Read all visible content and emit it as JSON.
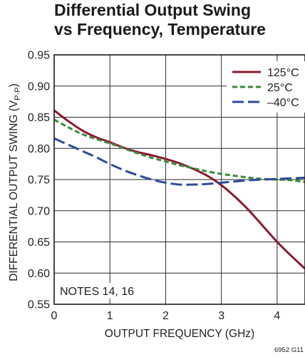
{
  "chart_data": {
    "type": "line",
    "title": [
      "Differential Output Swing",
      "vs Frequency, Temperature"
    ],
    "xlabel": "OUTPUT FREQUENCY (GHz)",
    "ylabel": "DIFFERENTIAL OUTPUT SWING (V",
    "ylabel_sub": "P-P",
    "ylabel_close": ")",
    "xlim": [
      0,
      4.5
    ],
    "ylim": [
      0.55,
      0.95
    ],
    "x_ticks": [
      "0",
      "1",
      "2",
      "3",
      "4"
    ],
    "y_ticks": [
      "0.55",
      "0.60",
      "0.65",
      "0.70",
      "0.75",
      "0.80",
      "0.85",
      "0.90",
      "0.95"
    ],
    "grid": true,
    "legend_position": "top-right",
    "note": "NOTES 14, 16",
    "figure_code": "6952 G11",
    "series": [
      {
        "name": "125°C",
        "color": "#8b1a2e",
        "dash": "solid",
        "x": [
          0,
          0.25,
          0.5,
          0.75,
          1.0,
          1.25,
          1.5,
          1.75,
          2.0,
          2.25,
          2.5,
          2.75,
          3.0,
          3.25,
          3.5,
          3.75,
          4.0,
          4.25,
          4.5
        ],
        "y": [
          0.861,
          0.844,
          0.829,
          0.818,
          0.81,
          0.801,
          0.794,
          0.789,
          0.783,
          0.776,
          0.767,
          0.756,
          0.741,
          0.722,
          0.7,
          0.675,
          0.65,
          0.628,
          0.607
        ]
      },
      {
        "name": "25°C",
        "color": "#3a8a3a",
        "dash": "short",
        "x": [
          0,
          0.25,
          0.5,
          0.75,
          1.0,
          1.25,
          1.5,
          1.75,
          2.0,
          2.25,
          2.5,
          2.75,
          3.0,
          3.25,
          3.5,
          3.75,
          4.0,
          4.25,
          4.5
        ],
        "y": [
          0.846,
          0.834,
          0.823,
          0.815,
          0.808,
          0.8,
          0.792,
          0.785,
          0.779,
          0.773,
          0.768,
          0.763,
          0.759,
          0.756,
          0.753,
          0.751,
          0.75,
          0.749,
          0.746
        ]
      },
      {
        "name": "–40°C",
        "color": "#2e4a9e",
        "dash": "long",
        "x": [
          0,
          0.25,
          0.5,
          0.75,
          1.0,
          1.25,
          1.5,
          1.75,
          2.0,
          2.25,
          2.5,
          2.75,
          3.0,
          3.25,
          3.5,
          3.75,
          4.0,
          4.25,
          4.5
        ],
        "y": [
          0.816,
          0.806,
          0.796,
          0.786,
          0.775,
          0.765,
          0.757,
          0.75,
          0.745,
          0.742,
          0.742,
          0.743,
          0.745,
          0.747,
          0.749,
          0.75,
          0.751,
          0.752,
          0.753
        ]
      }
    ]
  }
}
